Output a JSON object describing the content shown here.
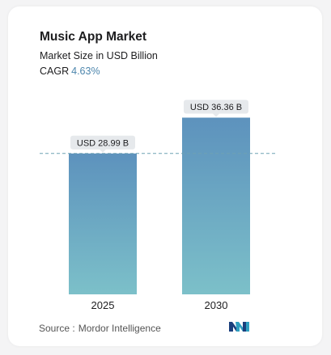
{
  "header": {
    "title": "Music App Market",
    "subtitle": "Market Size in USD Billion",
    "cagr_label": "CAGR",
    "cagr_value": "4.63%"
  },
  "chart_data": {
    "type": "bar",
    "title": "Music App Market",
    "subtitle": "Market Size in USD Billion",
    "categories": [
      "2025",
      "2030"
    ],
    "values": [
      28.99,
      36.36
    ],
    "data_labels": [
      "USD 28.99 B",
      "USD 36.36 B"
    ],
    "ylabel": "",
    "xlabel": "",
    "ylim": [
      0,
      40
    ],
    "grid": false,
    "reference_line": "dashed line at the 2025 value",
    "colors": {
      "bar_top": "#5d92bd",
      "bar_bottom": "#7cc0c9",
      "label_bg": "#e6e9ec",
      "dashed_line": "#6fa2b4",
      "cagr_accent": "#4d86ad"
    }
  },
  "footer": {
    "source_label": "Source :",
    "source_value": "Mordor Intelligence",
    "logo_icon": "mordor-intelligence-logo-icon"
  }
}
